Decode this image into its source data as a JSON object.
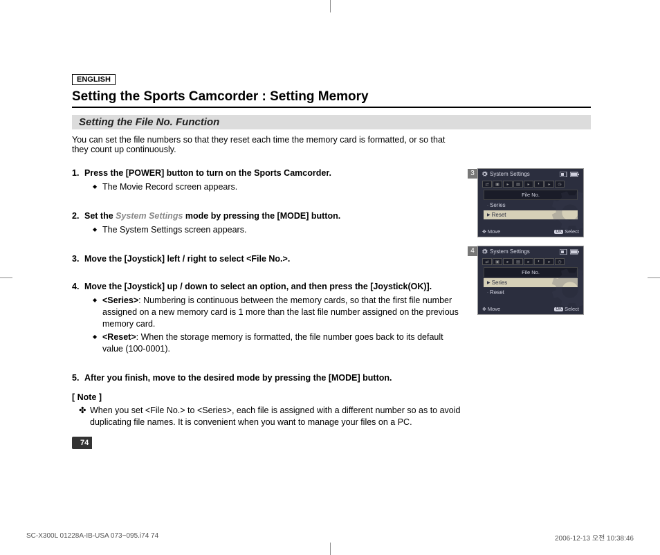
{
  "page": {
    "language_label": "ENGLISH",
    "title": "Setting the Sports Camcorder : Setting Memory",
    "subtitle": "Setting the File No. Function",
    "intro": "You can set the file numbers so that they reset each time the memory card is formatted, or so that they count up continuously.",
    "page_number": "74"
  },
  "steps": [
    {
      "num": "1.",
      "text": "Press the [POWER] button to turn on the Sports Camcorder.",
      "bullets": [
        "The Movie Record screen appears."
      ]
    },
    {
      "num": "2.",
      "text_pre": "Set the ",
      "text_hl": "System Settings",
      "text_post": " mode by pressing the [MODE] button.",
      "bullets": [
        "The System Settings screen appears."
      ]
    },
    {
      "num": "3.",
      "text": "Move the [Joystick] left / right to select <File No.>.",
      "bullets": []
    },
    {
      "num": "4.",
      "text": "Move the [Joystick] up / down to select an option, and then press the [Joystick(OK)].",
      "bullets": [
        "<Series>: Numbering is continuous between the memory cards, so that the first file number assigned on a new memory card is 1 more than the last file number assigned on the previous memory card.",
        "<Reset>: When the storage memory is formatted, the file number goes back to its default value (100-0001)."
      ],
      "bullet_bold_prefix": [
        "<Series>",
        "<Reset>"
      ]
    },
    {
      "num": "5.",
      "text": "After you finish, move to the desired mode by pressing the [MODE] button.",
      "bullets": []
    }
  ],
  "note": {
    "title": "[ Note ]",
    "text": "When you set <File No.> to <Series>, each file is assigned with a different number so as to avoid duplicating file names. It is convenient when you want to manage your files on a PC."
  },
  "screens": {
    "header_title": "System Settings",
    "menu_label": "File No.",
    "options": [
      "Series",
      "Reset"
    ],
    "footer_move": "Move",
    "footer_select": "Select",
    "footer_ok": "OK",
    "shots": [
      {
        "step": "3",
        "selected_index": 1
      },
      {
        "step": "4",
        "selected_index": 0
      }
    ]
  },
  "footer": {
    "left": "SC-X300L 01228A-IB-USA 073~095.i74   74",
    "right": "2006-12-13   오전 10:38:46"
  },
  "colors": {
    "subtitle_bg": "#dcdcdc",
    "screen_bg": "#2b2e3e",
    "screen_text": "#cfd0dd",
    "selected_bg": "#d6d0b8"
  }
}
